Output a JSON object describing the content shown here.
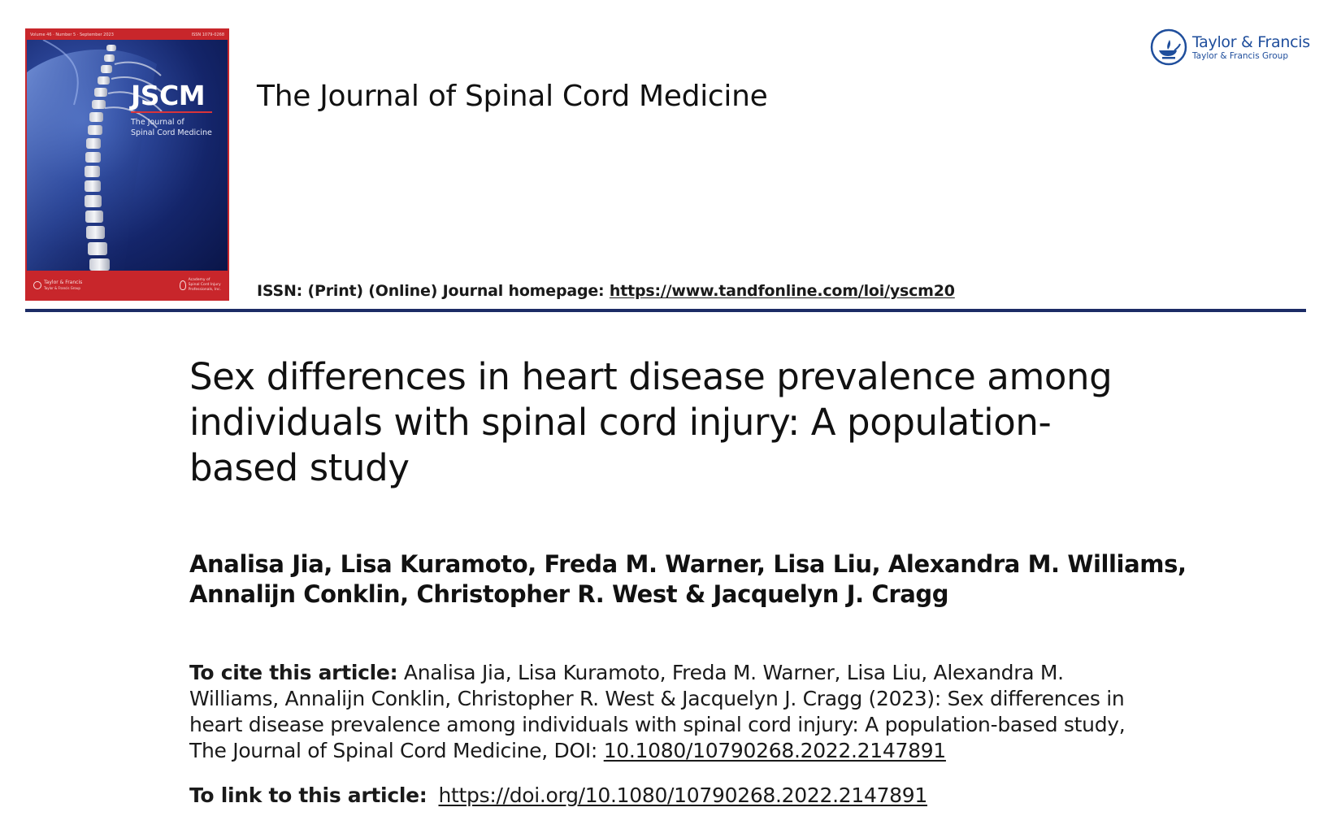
{
  "cover": {
    "top_left": "Volume 46 · Number 5 · September 2023",
    "top_right": "ISSN 1079-0268",
    "title": "JSCM",
    "subtitle": "The Journal of\nSpinal Cord Medicine",
    "publisher_label": "Taylor & Francis",
    "publisher_small": "Taylor & Francis Group",
    "association": "Academy of\nSpinal Cord Injury\nProfessionals, Inc.",
    "colors": {
      "band": "#c8262b",
      "art": "#14256a"
    }
  },
  "journal": {
    "name": "The Journal of Spinal Cord Medicine",
    "issn_text": "ISSN: (Print) (Online) Journal homepage: ",
    "homepage_url": "https://www.tandfonline.com/loi/yscm20"
  },
  "publisher": {
    "name": "Taylor & Francis",
    "group": "Taylor & Francis Group",
    "color": "#1f4e9c",
    "icon": "lamp-icon"
  },
  "article": {
    "title_lines": [
      "Sex differences in heart disease prevalence among",
      "individuals with spinal cord injury: A population-",
      "based study"
    ],
    "author_lines": [
      "Analisa Jia, Lisa Kuramoto, Freda M. Warner, Lisa Liu, Alexandra M. Williams,",
      "Annalijn Conklin, Christopher R. West & Jacquelyn J. Cragg"
    ]
  },
  "citation": {
    "label": "To cite this article:",
    "lines": [
      " Analisa Jia, Lisa Kuramoto, Freda M. Warner, Lisa Liu, Alexandra M.",
      "Williams, Annalijn Conklin, Christopher R. West & Jacquelyn J. Cragg (2023): Sex differences in",
      "heart disease prevalence among individuals with spinal cord injury: A population-based study,"
    ],
    "last_line_prefix": "The Journal of Spinal Cord Medicine, DOI: ",
    "doi": "10.1080/10790268.2022.2147891"
  },
  "link": {
    "label": "To link to this article:",
    "url": "https://doi.org/10.1080/10790268.2022.2147891"
  }
}
